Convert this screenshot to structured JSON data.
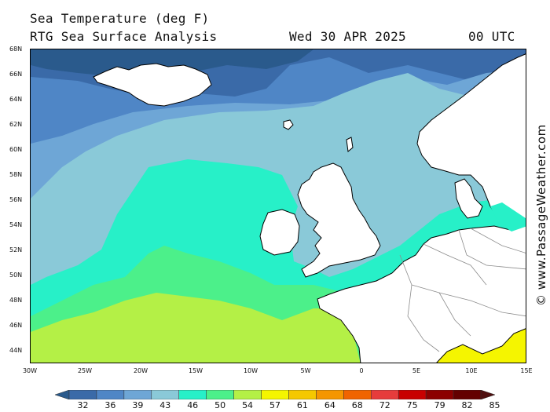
{
  "header": {
    "title": "Sea Temperature (deg F)",
    "subtitle": "RTG Sea Surface Analysis",
    "date": "Wed 30 APR 2025",
    "time": "00 UTC"
  },
  "credit": "© www.PassageWeather.com",
  "map": {
    "lat_range": [
      43,
      68
    ],
    "lon_range": [
      -30,
      15
    ],
    "lat_labels": [
      "68N",
      "66N",
      "64N",
      "62N",
      "60N",
      "58N",
      "56N",
      "54N",
      "52N",
      "50N",
      "48N",
      "46N",
      "44N"
    ],
    "lon_labels": [
      "30W",
      "25W",
      "20W",
      "15W",
      "10W",
      "5W",
      "0",
      "5E",
      "10E",
      "15E"
    ],
    "colors": {
      "land": "#ffffff",
      "coast": "#000000",
      "border": "#8c8c8c"
    }
  },
  "legend": {
    "labels": [
      "32",
      "36",
      "39",
      "43",
      "46",
      "50",
      "54",
      "57",
      "61",
      "64",
      "68",
      "72",
      "75",
      "79",
      "82",
      "85"
    ],
    "colors": [
      "#2a5a8c",
      "#3a6aa8",
      "#4f86c6",
      "#6ea6d6",
      "#8ac9d8",
      "#27f0c8",
      "#4cf08a",
      "#b4f046",
      "#f5f500",
      "#f5c800",
      "#f59600",
      "#f06400",
      "#e63c3c",
      "#c80000",
      "#8c0000",
      "#640000",
      "#501010"
    ]
  }
}
